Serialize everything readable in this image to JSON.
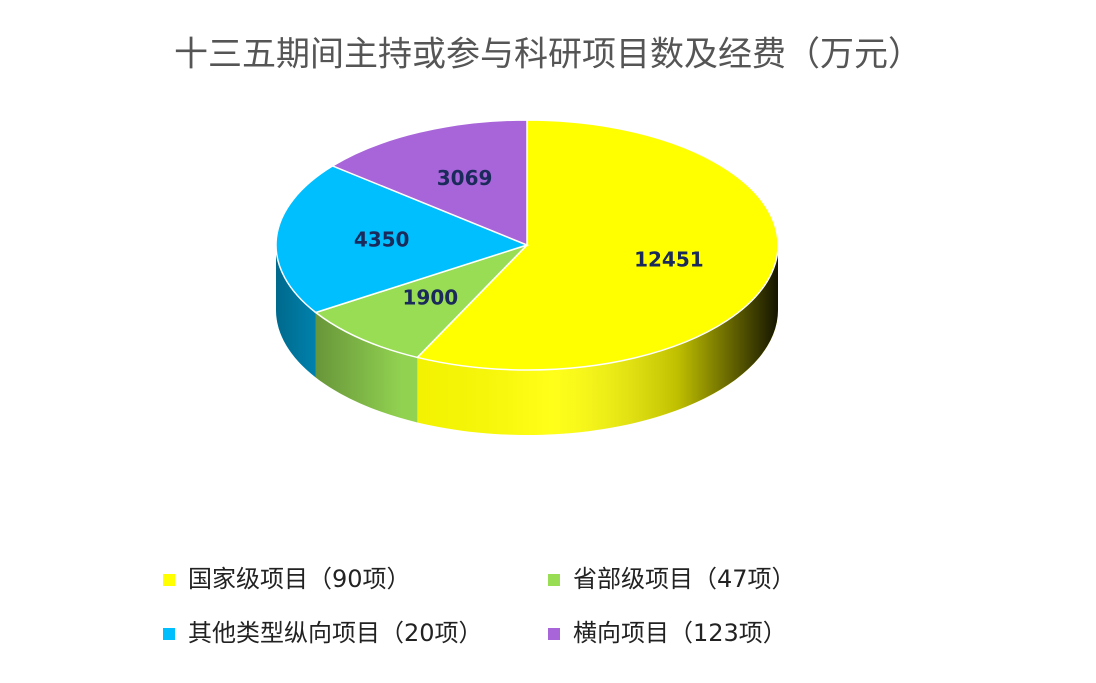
{
  "chart_data": {
    "type": "pie3d",
    "title": "十三五期间主持或参与科研项目数及经费（万元）",
    "categories": [
      "国家级项目（90项）",
      "省部级项目（47项）",
      "其他类型纵向项目（20项）",
      "横向项目（123项）"
    ],
    "values": [
      12451,
      1900,
      4350,
      3069
    ],
    "colors": [
      "#ffff00",
      "#99dd55",
      "#00bfff",
      "#a865d9"
    ],
    "legend": "bottom"
  }
}
